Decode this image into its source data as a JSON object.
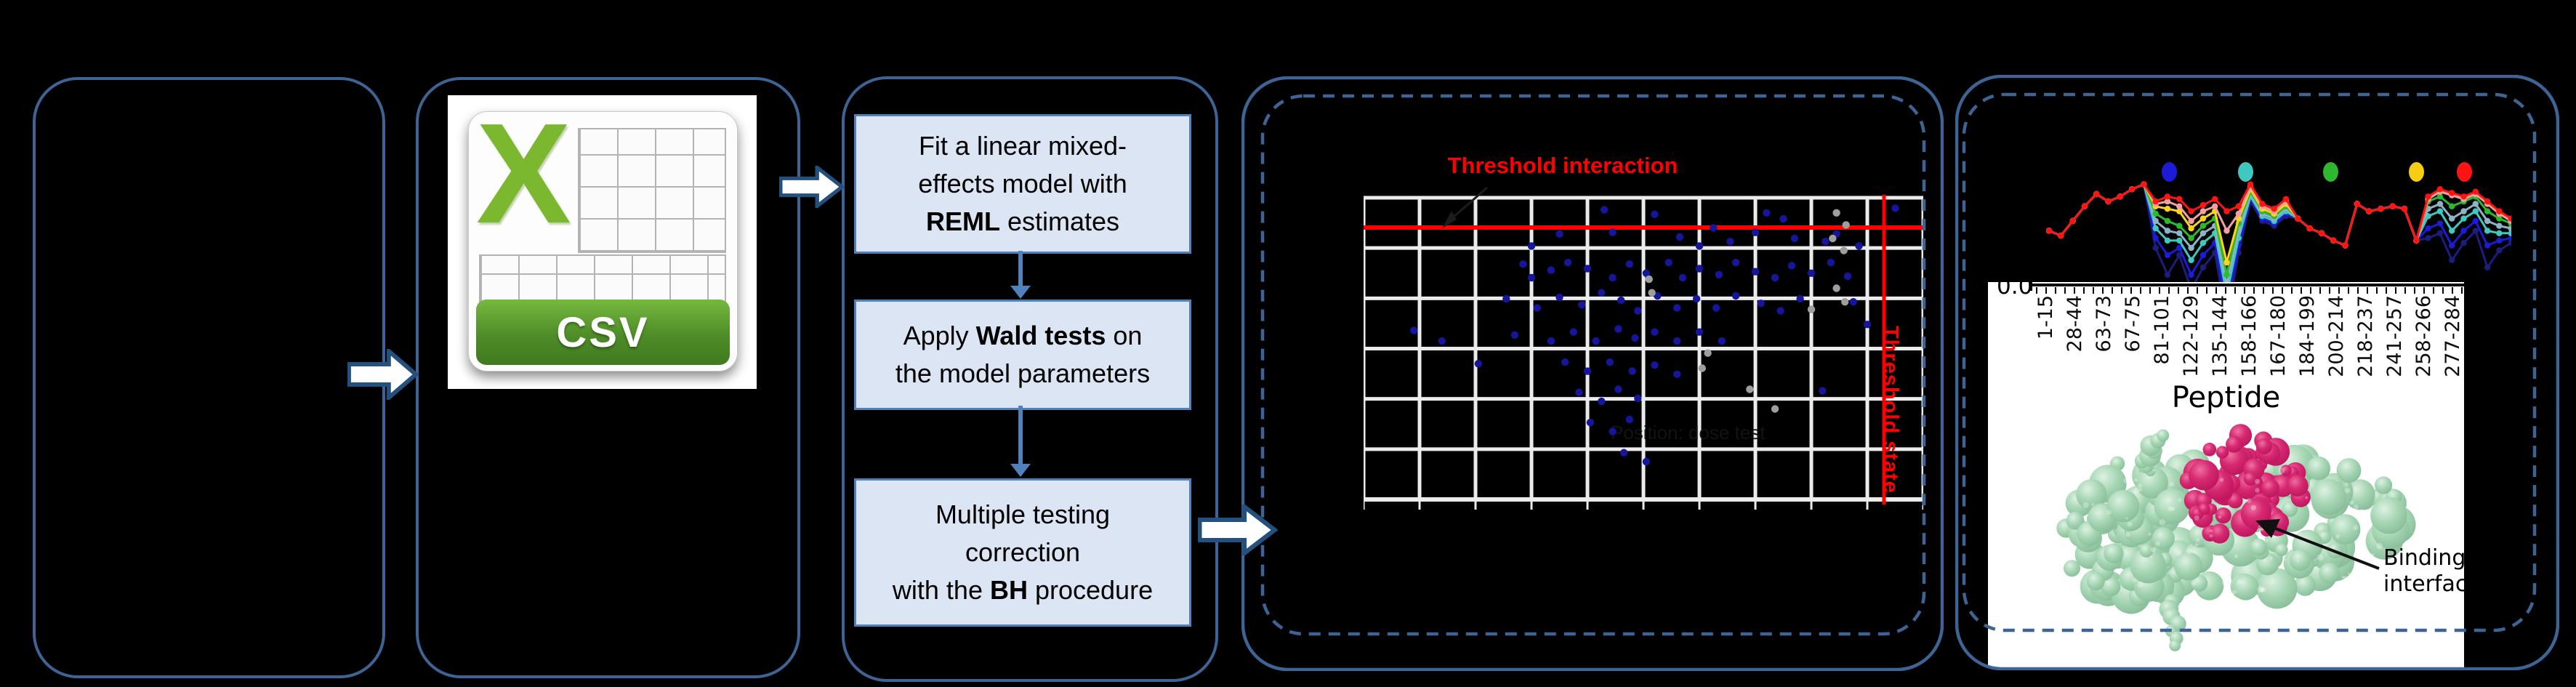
{
  "canvas": {
    "background": "#000000",
    "accent_border": "#3d6494"
  },
  "csv": {
    "x_letter": "X",
    "format_label": "CSV"
  },
  "flow": {
    "step1": {
      "l1": "Fit a linear mixed-",
      "l2": "effects model with",
      "l3_bold": "REML",
      "l3_rest": " estimates"
    },
    "step2": {
      "l1_pre": "Apply ",
      "l1_bold": "Wald tests",
      "l1_post": " on",
      "l2": "the model parameters"
    },
    "step3": {
      "l1": "Multiple testing",
      "l2": "correction",
      "l3_pre": "with the ",
      "l3_bold": "BH",
      "l3_post": " procedure"
    }
  },
  "profile_panel": {
    "binding_label": "Binding interface"
  },
  "chart_data": [
    {
      "type": "scatter",
      "title": "Threshold interaction",
      "vertical_label": "Threshold state",
      "faint_label": "Position: dose test",
      "grid": {
        "cols": 11,
        "rows": 7,
        "color": "#ebebeb",
        "background": "#000000"
      },
      "threshold_color": "#ff0000",
      "threshold_h_y": 0.1,
      "threshold_v_x": 0.93,
      "series": [
        {
          "name": "significant-peptide-points",
          "color": "#16169c",
          "points": [
            [
              0.3,
              0.16
            ],
            [
              0.35,
              0.12
            ],
            [
              0.43,
              0.04
            ],
            [
              0.445,
              0.115
            ],
            [
              0.52,
              0.055
            ],
            [
              0.565,
              0.13
            ],
            [
              0.6,
              0.16
            ],
            [
              0.625,
              0.1
            ],
            [
              0.655,
              0.145
            ],
            [
              0.7,
              0.115
            ],
            [
              0.72,
              0.05
            ],
            [
              0.75,
              0.07
            ],
            [
              0.77,
              0.135
            ],
            [
              0.825,
              0.145
            ],
            [
              0.845,
              0.12
            ],
            [
              0.885,
              0.16
            ],
            [
              0.95,
              0.035
            ],
            [
              0.285,
              0.22
            ],
            [
              0.3,
              0.265
            ],
            [
              0.335,
              0.24
            ],
            [
              0.365,
              0.215
            ],
            [
              0.4,
              0.235
            ],
            [
              0.445,
              0.265
            ],
            [
              0.475,
              0.22
            ],
            [
              0.505,
              0.25
            ],
            [
              0.545,
              0.215
            ],
            [
              0.57,
              0.265
            ],
            [
              0.6,
              0.235
            ],
            [
              0.635,
              0.255
            ],
            [
              0.665,
              0.215
            ],
            [
              0.7,
              0.245
            ],
            [
              0.735,
              0.265
            ],
            [
              0.765,
              0.225
            ],
            [
              0.8,
              0.25
            ],
            [
              0.835,
              0.215
            ],
            [
              0.865,
              0.26
            ],
            [
              0.255,
              0.335
            ],
            [
              0.31,
              0.365
            ],
            [
              0.35,
              0.33
            ],
            [
              0.39,
              0.355
            ],
            [
              0.425,
              0.315
            ],
            [
              0.46,
              0.34
            ],
            [
              0.49,
              0.375
            ],
            [
              0.525,
              0.325
            ],
            [
              0.56,
              0.365
            ],
            [
              0.595,
              0.335
            ],
            [
              0.63,
              0.365
            ],
            [
              0.665,
              0.325
            ],
            [
              0.71,
              0.35
            ],
            [
              0.745,
              0.375
            ],
            [
              0.78,
              0.335
            ],
            [
              0.875,
              0.345
            ],
            [
              0.09,
              0.44
            ],
            [
              0.14,
              0.475
            ],
            [
              0.27,
              0.455
            ],
            [
              0.335,
              0.475
            ],
            [
              0.375,
              0.445
            ],
            [
              0.415,
              0.475
            ],
            [
              0.455,
              0.435
            ],
            [
              0.485,
              0.465
            ],
            [
              0.52,
              0.445
            ],
            [
              0.56,
              0.475
            ],
            [
              0.6,
              0.445
            ],
            [
              0.64,
              0.475
            ],
            [
              0.9,
              0.42
            ],
            [
              0.205,
              0.55
            ],
            [
              0.36,
              0.545
            ],
            [
              0.4,
              0.575
            ],
            [
              0.44,
              0.545
            ],
            [
              0.48,
              0.575
            ],
            [
              0.52,
              0.555
            ],
            [
              0.56,
              0.585
            ],
            [
              0.385,
              0.645
            ],
            [
              0.425,
              0.675
            ],
            [
              0.455,
              0.635
            ],
            [
              0.49,
              0.665
            ],
            [
              0.82,
              0.64
            ],
            [
              0.405,
              0.745
            ],
            [
              0.445,
              0.775
            ],
            [
              0.475,
              0.735
            ],
            [
              0.465,
              0.845
            ],
            [
              0.505,
              0.875
            ]
          ]
        },
        {
          "name": "non-significant-points",
          "color": "#9e9e9e",
          "points": [
            [
              0.845,
              0.05
            ],
            [
              0.862,
              0.09
            ],
            [
              0.838,
              0.135
            ],
            [
              0.858,
              0.175
            ],
            [
              0.845,
              0.3
            ],
            [
              0.86,
              0.345
            ],
            [
              0.735,
              0.7
            ],
            [
              0.69,
              0.635
            ],
            [
              0.615,
              0.515
            ],
            [
              0.605,
              0.565
            ],
            [
              0.8,
              0.37
            ],
            [
              0.51,
              0.27
            ],
            [
              0.515,
              0.315
            ]
          ]
        }
      ]
    },
    {
      "type": "line",
      "xlabel": "Peptide",
      "y_tick_label": "0.0",
      "x_tick_labels": [
        "1-15",
        "28-44",
        "63-73",
        "67-75",
        "81-101",
        "122-129",
        "135-144",
        "158-166",
        "167-180",
        "184-199",
        "200-214",
        "218-237",
        "241-257",
        "258-266",
        "277-284"
      ],
      "legend_dot_colors": [
        "#1b1bd8",
        "#3fc8bf",
        "#2eb82e",
        "#f7cd13",
        "#ff1414"
      ],
      "ylim": [
        0.0,
        1.0
      ],
      "series": [
        {
          "name": "dose-1-navy",
          "color": "#1d1d7e",
          "values": [
            0.42,
            0.38,
            0.5,
            0.62,
            0.72,
            0.66,
            0.7,
            0.76,
            0.8,
            0.28,
            0.06,
            0.22,
            -0.06,
            0.12,
            0.24,
            -0.3,
            0.24,
            0.66,
            0.5,
            0.46,
            0.54,
            0.52,
            0.44,
            0.4,
            0.34,
            0.3,
            0.64,
            0.58,
            0.6,
            0.62,
            0.6,
            0.34,
            0.36,
            0.4,
            0.18,
            0.32,
            0.42,
            0.12,
            0.26,
            0.32
          ]
        },
        {
          "name": "dose-2-blue",
          "color": "#1b1bd8",
          "values": [
            0.42,
            0.38,
            0.5,
            0.62,
            0.72,
            0.66,
            0.7,
            0.76,
            0.8,
            0.36,
            0.22,
            0.28,
            0.06,
            0.22,
            0.32,
            -0.2,
            0.3,
            0.68,
            0.52,
            0.48,
            0.56,
            0.52,
            0.44,
            0.4,
            0.34,
            0.3,
            0.64,
            0.58,
            0.6,
            0.62,
            0.6,
            0.34,
            0.44,
            0.48,
            0.3,
            0.42,
            0.5,
            0.3,
            0.34,
            0.36
          ]
        },
        {
          "name": "dose-3-cyan",
          "color": "#3fc8bf",
          "values": [
            0.42,
            0.38,
            0.5,
            0.62,
            0.72,
            0.66,
            0.7,
            0.76,
            0.8,
            0.44,
            0.34,
            0.34,
            0.18,
            0.32,
            0.4,
            -0.1,
            0.36,
            0.7,
            0.54,
            0.5,
            0.58,
            0.52,
            0.44,
            0.4,
            0.34,
            0.3,
            0.64,
            0.58,
            0.6,
            0.62,
            0.6,
            0.34,
            0.54,
            0.58,
            0.42,
            0.52,
            0.58,
            0.42,
            0.4,
            0.4
          ]
        },
        {
          "name": "dose-4-steel",
          "color": "#8fb3c6",
          "values": [
            0.42,
            0.38,
            0.5,
            0.62,
            0.72,
            0.66,
            0.7,
            0.76,
            0.8,
            0.5,
            0.42,
            0.4,
            0.28,
            0.4,
            0.46,
            -0.02,
            0.42,
            0.72,
            0.56,
            0.52,
            0.6,
            0.52,
            0.44,
            0.4,
            0.34,
            0.3,
            0.64,
            0.58,
            0.6,
            0.62,
            0.6,
            0.34,
            0.6,
            0.64,
            0.52,
            0.58,
            0.64,
            0.5,
            0.46,
            0.44
          ]
        },
        {
          "name": "dose-5-green",
          "color": "#2eb82e",
          "values": [
            0.42,
            0.38,
            0.5,
            0.62,
            0.72,
            0.66,
            0.7,
            0.76,
            0.8,
            0.56,
            0.5,
            0.46,
            0.36,
            0.46,
            0.52,
            0.06,
            0.48,
            0.74,
            0.58,
            0.54,
            0.62,
            0.52,
            0.44,
            0.4,
            0.34,
            0.3,
            0.64,
            0.58,
            0.6,
            0.62,
            0.6,
            0.34,
            0.66,
            0.7,
            0.62,
            0.66,
            0.7,
            0.58,
            0.52,
            0.48
          ]
        },
        {
          "name": "dose-6-yellow",
          "color": "#ffd319",
          "values": [
            0.42,
            0.38,
            0.5,
            0.62,
            0.72,
            0.66,
            0.7,
            0.76,
            0.8,
            0.62,
            0.6,
            0.58,
            0.44,
            0.52,
            0.58,
            0.16,
            0.52,
            0.76,
            0.6,
            0.56,
            0.64,
            0.52,
            0.44,
            0.4,
            0.34,
            0.3,
            0.64,
            0.58,
            0.6,
            0.62,
            0.6,
            0.34,
            0.69,
            0.75,
            0.72,
            0.69,
            0.73,
            0.65,
            0.57,
            0.51
          ]
        },
        {
          "name": "dose-7-salmon",
          "color": "#f2a0a0",
          "values": [
            0.42,
            0.38,
            0.5,
            0.62,
            0.72,
            0.66,
            0.7,
            0.76,
            0.8,
            0.64,
            0.66,
            0.62,
            0.5,
            0.58,
            0.62,
            0.42,
            0.56,
            0.78,
            0.62,
            0.58,
            0.66,
            0.52,
            0.44,
            0.4,
            0.34,
            0.3,
            0.64,
            0.58,
            0.6,
            0.62,
            0.6,
            0.34,
            0.68,
            0.74,
            0.71,
            0.68,
            0.72,
            0.64,
            0.56,
            0.5
          ]
        },
        {
          "name": "dose-8-red",
          "color": "#ff1414",
          "values": [
            0.42,
            0.38,
            0.5,
            0.62,
            0.72,
            0.66,
            0.7,
            0.76,
            0.8,
            0.66,
            0.7,
            0.68,
            0.58,
            0.63,
            0.68,
            0.58,
            0.62,
            0.8,
            0.64,
            0.6,
            0.68,
            0.52,
            0.44,
            0.4,
            0.34,
            0.3,
            0.64,
            0.58,
            0.6,
            0.62,
            0.6,
            0.34,
            0.7,
            0.76,
            0.73,
            0.7,
            0.74,
            0.66,
            0.58,
            0.52
          ]
        }
      ]
    }
  ]
}
